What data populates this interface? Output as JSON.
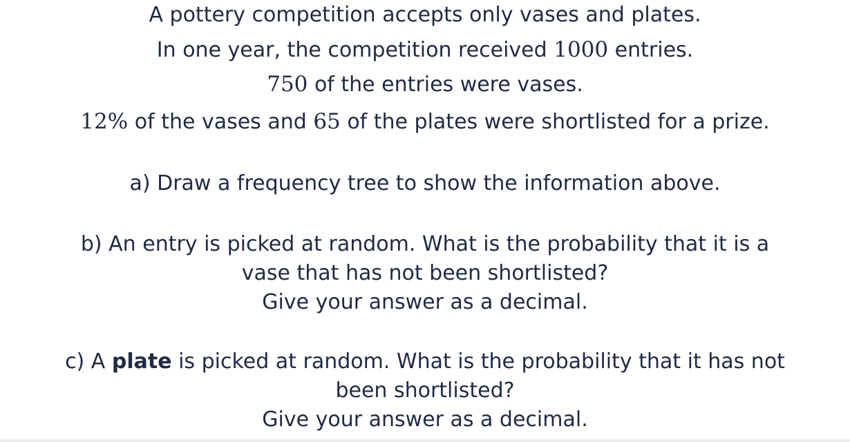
{
  "intro": {
    "line1": "A pottery competition accepts only vases and plates.",
    "line2_before": "In one year, the competition received ",
    "line2_num": "1000",
    "line2_after": " entries.",
    "line3_num": "750",
    "line3_after": " of the entries were vases.",
    "line4_pct": "12%",
    "line4_mid": " of the vases and ",
    "line4_num": "65",
    "line4_after": " of the plates were shortlisted for a prize."
  },
  "part_a": {
    "text": "a) Draw a frequency tree to show the information above."
  },
  "part_b": {
    "line1": "b) An entry is picked at random. What is the probability that it is a",
    "line2": "vase that has not been shortlisted?",
    "line3": "Give your answer as a decimal."
  },
  "part_c": {
    "line1_before": "c) A ",
    "line1_bold": "plate",
    "line1_after": " is picked at random. What is the probability that it has not",
    "line2": "been shortlisted?",
    "line3": "Give your answer as a decimal."
  }
}
